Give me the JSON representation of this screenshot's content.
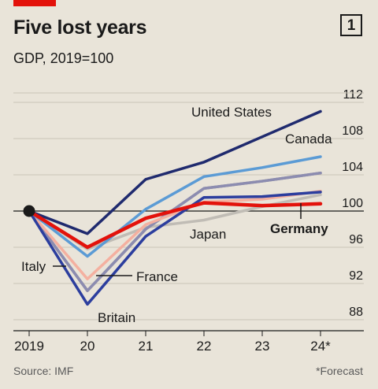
{
  "header": {
    "title": "Five lost years",
    "chart_number": "1",
    "subtitle": "GDP, 2019=100"
  },
  "footer": {
    "source": "Source: IMF",
    "note": "*Forecast"
  },
  "chart_data": {
    "type": "line",
    "title": "Five lost years",
    "subtitle": "GDP, 2019=100",
    "x": [
      "2019",
      "20",
      "21",
      "22",
      "23",
      "24*"
    ],
    "yticks": [
      88,
      92,
      96,
      100,
      104,
      108,
      112
    ],
    "ylim": [
      87,
      113
    ],
    "grid": true,
    "series": [
      {
        "name": "United States",
        "color": "#1f2a6e",
        "values": [
          100,
          97.5,
          103.5,
          105.4,
          108.2,
          111.0
        ]
      },
      {
        "name": "Canada",
        "color": "#5b9bd5",
        "values": [
          100,
          95.0,
          100.2,
          103.8,
          104.8,
          106.0
        ]
      },
      {
        "name": "",
        "color": "#8e8e8e",
        "values": [
          100,
          91.2,
          98.0,
          102.5,
          103.3,
          104.2
        ]
      },
      {
        "name": "Japan",
        "color": "#c0bcb5",
        "values": [
          100,
          95.8,
          98.2,
          99.0,
          100.5,
          101.8
        ]
      },
      {
        "name": "Britain",
        "color": "#2c3e9e",
        "values": [
          100,
          89.7,
          97.2,
          101.5,
          101.6,
          102.1
        ]
      },
      {
        "name": "France",
        "color": "#f4b0a0",
        "values": [
          100,
          92.5,
          98.5,
          101.0,
          101.3,
          102.2
        ]
      },
      {
        "name": "Italy",
        "color": "#8c8cb0",
        "values": [
          100,
          91.2,
          98.0,
          102.5,
          103.3,
          104.2
        ]
      },
      {
        "name": "Germany",
        "color": "#e3120b",
        "values": [
          100,
          96.0,
          99.2,
          100.9,
          100.6,
          100.8
        ]
      }
    ],
    "labels": {
      "united_states": "United States",
      "canada": "Canada",
      "japan": "Japan",
      "germany": "Germany",
      "italy": "Italy",
      "france": "France",
      "britain": "Britain"
    }
  }
}
